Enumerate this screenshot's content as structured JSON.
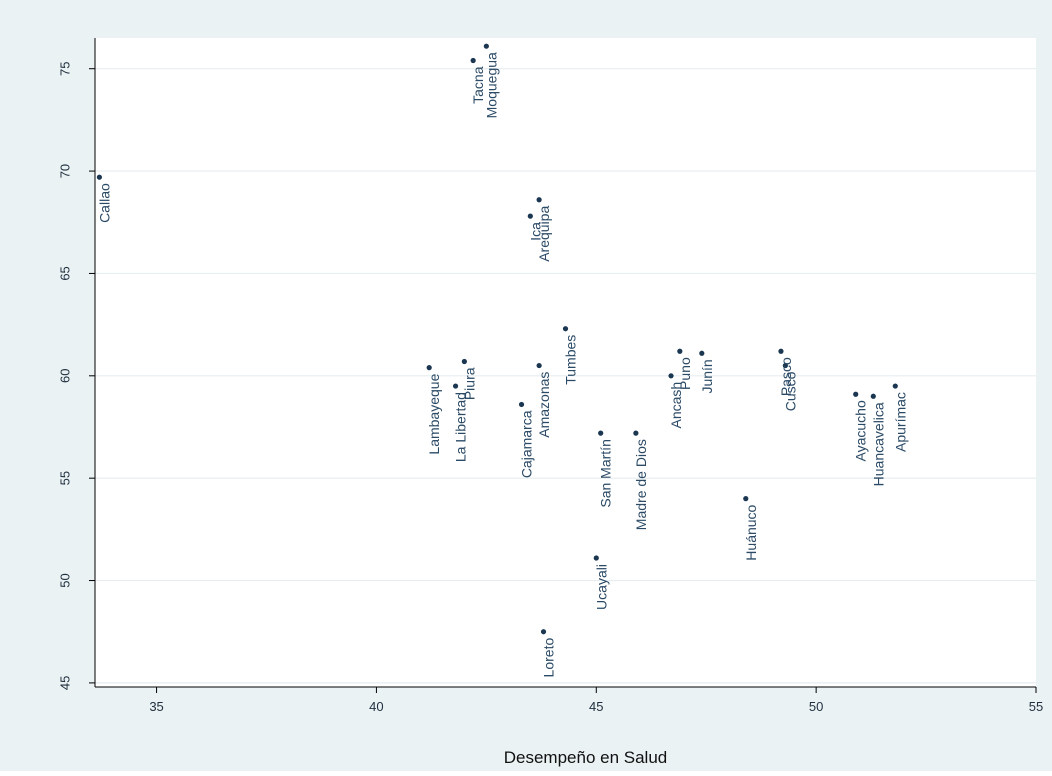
{
  "chart_data": {
    "type": "scatter",
    "title": "",
    "xlabel": "Desempeño en Salud",
    "ylabel": "",
    "xlim": [
      33.6,
      55
    ],
    "ylim": [
      44.8,
      76.5
    ],
    "xticks": [
      35,
      40,
      45,
      50,
      55
    ],
    "yticks": [
      45,
      50,
      55,
      60,
      65,
      70,
      75
    ],
    "grid": "horizontal",
    "colors": {
      "outer_background": "#eaf2f3",
      "plot_background": "#ffffff",
      "point": "#1a3650",
      "label": "#2b4a66",
      "grid": "#e6eef0",
      "axis": "#000000"
    },
    "points": [
      {
        "label": "Tacna",
        "x": 42.2,
        "y": 75.4
      },
      {
        "label": "Moquegua",
        "x": 42.5,
        "y": 76.1
      },
      {
        "label": "Callao",
        "x": 33.7,
        "y": 69.7
      },
      {
        "label": "Ica",
        "x": 43.5,
        "y": 67.8
      },
      {
        "label": "Arequipa",
        "x": 43.7,
        "y": 68.6
      },
      {
        "label": "Tumbes",
        "x": 44.3,
        "y": 62.3
      },
      {
        "label": "Lambayeque",
        "x": 41.2,
        "y": 60.4
      },
      {
        "label": "La Libertad",
        "x": 41.8,
        "y": 59.5
      },
      {
        "label": "Piura",
        "x": 42.0,
        "y": 60.7
      },
      {
        "label": "Cajamarca",
        "x": 43.3,
        "y": 58.6
      },
      {
        "label": "Amazonas",
        "x": 43.7,
        "y": 60.5
      },
      {
        "label": "Ancash",
        "x": 46.7,
        "y": 60.0
      },
      {
        "label": "Puno",
        "x": 46.9,
        "y": 61.2
      },
      {
        "label": "Junín",
        "x": 47.4,
        "y": 61.1
      },
      {
        "label": "Pasco",
        "x": 49.2,
        "y": 61.2
      },
      {
        "label": "Cusco",
        "x": 49.3,
        "y": 60.5
      },
      {
        "label": "Ayacucho",
        "x": 50.9,
        "y": 59.1
      },
      {
        "label": "Huancavelica",
        "x": 51.3,
        "y": 59.0
      },
      {
        "label": "Apurímac",
        "x": 51.8,
        "y": 59.5
      },
      {
        "label": "San Martín",
        "x": 45.1,
        "y": 57.2
      },
      {
        "label": "Madre de Dios",
        "x": 45.9,
        "y": 57.2
      },
      {
        "label": "Huánuco",
        "x": 48.4,
        "y": 54.0
      },
      {
        "label": "Ucayali",
        "x": 45.0,
        "y": 51.1
      },
      {
        "label": "Loreto",
        "x": 43.8,
        "y": 47.5
      }
    ]
  }
}
